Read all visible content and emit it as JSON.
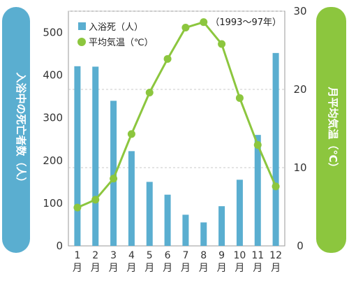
{
  "chart_data": {
    "type": "bar+line",
    "categories": [
      "1",
      "2",
      "3",
      "4",
      "5",
      "6",
      "7",
      "8",
      "9",
      "10",
      "11",
      "12"
    ],
    "category_suffix": "月",
    "period_label": "（1993〜97年）",
    "series": [
      {
        "name": "入浴死（人）",
        "type": "bar",
        "axis": "left",
        "color": "#5aaed0",
        "values": [
          421,
          420,
          340,
          222,
          150,
          120,
          73,
          55,
          93,
          155,
          260,
          452
        ]
      },
      {
        "name": "平均気温（℃）",
        "type": "line",
        "axis": "right",
        "color": "#8cc63e",
        "values": [
          4.9,
          5.9,
          8.6,
          14.3,
          19.6,
          23.9,
          27.9,
          28.6,
          25.8,
          18.9,
          12.9,
          7.6
        ]
      }
    ],
    "left_axis": {
      "title": "入浴中の死亡者数（人）",
      "range": [
        0,
        550
      ],
      "ticks": [
        0,
        100,
        200,
        300,
        400,
        500
      ],
      "color": "#5aaed0"
    },
    "right_axis": {
      "title": "月平均気温（℃）",
      "range": [
        0,
        30
      ],
      "ticks": [
        0,
        10,
        20,
        30
      ],
      "color": "#8cc63e"
    },
    "grid": true
  }
}
